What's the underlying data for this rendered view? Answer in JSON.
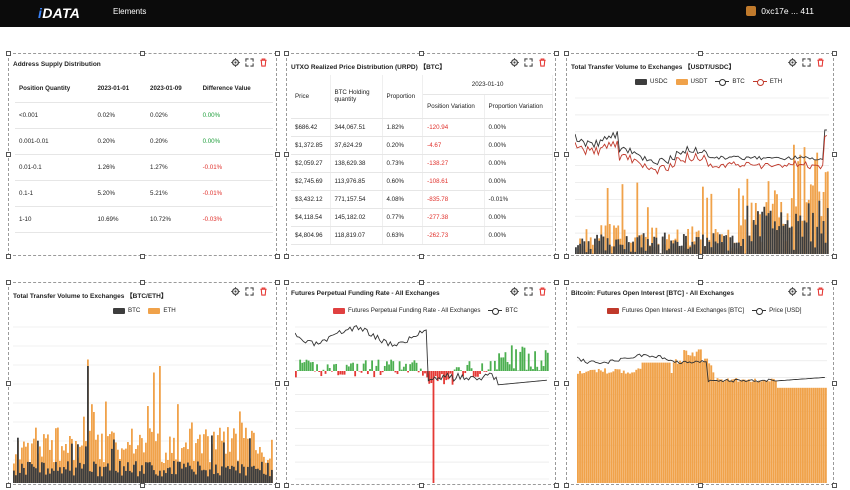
{
  "topbar": {
    "logo": "DATA",
    "nav_elements": "Elements",
    "wallet": "0xc17e ... 411"
  },
  "colors": {
    "usdc": "#3d3d3d",
    "usdt": "#f0a24a",
    "btc_line": "#333333",
    "eth_line": "#c0392b",
    "eth_bar": "#f0a24a",
    "btc_bar": "#3d3d3d",
    "funding_pos": "#4caf50",
    "funding_neg": "#e53935",
    "oi_bar": "#f0a24a",
    "oi_legend": "#c0392b"
  },
  "icons": [
    "gear-icon",
    "expand-icon",
    "delete-icon"
  ],
  "supply": {
    "title": "Address Supply Distribution",
    "headers": [
      "Position Quantity",
      "2023-01-01",
      "2023-01-09",
      "Difference Value"
    ],
    "rows": [
      [
        "<0.001",
        "0.02%",
        "0.02%",
        "0.00%"
      ],
      [
        "0.001-0.01",
        "0.20%",
        "0.20%",
        "0.00%"
      ],
      [
        "0.01-0.1",
        "1.26%",
        "1.27%",
        "-0.01%"
      ],
      [
        "0.1-1",
        "5.20%",
        "5.21%",
        "-0.01%"
      ],
      [
        "1-10",
        "10.69%",
        "10.72%",
        "-0.03%"
      ]
    ]
  },
  "urpd": {
    "title": "UTXO Realized Price Distribution (URPD) 【BTC】",
    "date": "2023-01-10",
    "headers": [
      "Price",
      "BTC Holding quantity",
      "Proportion",
      "Position Variation",
      "Proportion Variation"
    ],
    "rows": [
      [
        "$686.42",
        "344,067.51",
        "1.82%",
        "-120.94",
        "0.00%"
      ],
      [
        "$1,372.85",
        "37,624.29",
        "0.20%",
        "-4.67",
        "0.00%"
      ],
      [
        "$2,059.27",
        "138,629.38",
        "0.73%",
        "-138.27",
        "0.00%"
      ],
      [
        "$2,745.69",
        "113,976.85",
        "0.60%",
        "-108.61",
        "0.00%"
      ],
      [
        "$3,432.12",
        "771,157.54",
        "4.08%",
        "-835.78",
        "-0.01%"
      ],
      [
        "$4,118.54",
        "145,182.02",
        "0.77%",
        "-277.38",
        "0.00%"
      ],
      [
        "$4,804.96",
        "118,819.07",
        "0.63%",
        "-262.73",
        "0.00%"
      ]
    ]
  },
  "chart_data": [
    {
      "type": "bar",
      "title": "Total Transfer Volume to Exchanges 【USDT/USDC】",
      "series": [
        {
          "name": "USDC",
          "kind": "bar"
        },
        {
          "name": "USDT",
          "kind": "bar"
        },
        {
          "name": "BTC",
          "kind": "line"
        },
        {
          "name": "ETH",
          "kind": "line"
        }
      ],
      "grid": true,
      "legend": "top"
    },
    {
      "type": "bar",
      "title": "Total Transfer Volume to Exchanges 【BTC/ETH】",
      "series": [
        {
          "name": "BTC",
          "kind": "bar"
        },
        {
          "name": "ETH",
          "kind": "bar"
        }
      ],
      "grid": true,
      "legend": "top"
    },
    {
      "type": "bar",
      "title": "Futures Perpetual Funding Rate - All Exchanges",
      "series": [
        {
          "name": "Futures Perpetual Funding Rate - All Exchanges",
          "kind": "bar"
        },
        {
          "name": "BTC",
          "kind": "line"
        }
      ],
      "grid": true,
      "legend": "top"
    },
    {
      "type": "bar",
      "title": "Bitcoin: Futures Open Interest [BTC] - All Exchanges",
      "series": [
        {
          "name": "Futures Open Interest - All Exchanges [BTC]",
          "kind": "bar"
        },
        {
          "name": "Price [USD]",
          "kind": "line"
        }
      ],
      "grid": true,
      "legend": "top"
    }
  ]
}
